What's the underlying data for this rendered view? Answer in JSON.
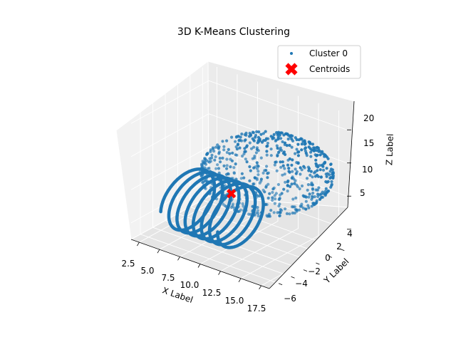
{
  "chart_data": {
    "type": "scatter",
    "projection": "3d",
    "title": "3D K-Means Clustering",
    "xlabel": "X Label",
    "ylabel": "Y Label",
    "zlabel": "Z Label",
    "x_ticks": [
      "2.5",
      "5.0",
      "7.5",
      "10.0",
      "12.5",
      "15.0",
      "17.5"
    ],
    "y_ticks": [
      "−6",
      "−4",
      "−2",
      "0",
      "2",
      "4"
    ],
    "z_ticks": [
      "5",
      "10",
      "15",
      "20"
    ],
    "xlim": [
      1.5,
      18.5
    ],
    "ylim": [
      -7,
      5.5
    ],
    "zlim": [
      2.5,
      22.5
    ],
    "grid": true,
    "legend_position": "top-right",
    "series": [
      {
        "name": "Cluster 0",
        "color": "#1f77b4",
        "marker": "circle",
        "components": [
          {
            "shape": "helix",
            "x_range": [
              4,
              11
            ],
            "turns": 7,
            "radius": 4,
            "center_z": 7
          },
          {
            "shape": "sphere",
            "center": [
              14,
              0,
              15
            ],
            "radius": 6.5
          }
        ]
      },
      {
        "name": "Centroids",
        "color": "#ff0000",
        "marker": "X",
        "points": [
          [
            9.7,
            0.1,
            10.2
          ]
        ]
      }
    ]
  }
}
